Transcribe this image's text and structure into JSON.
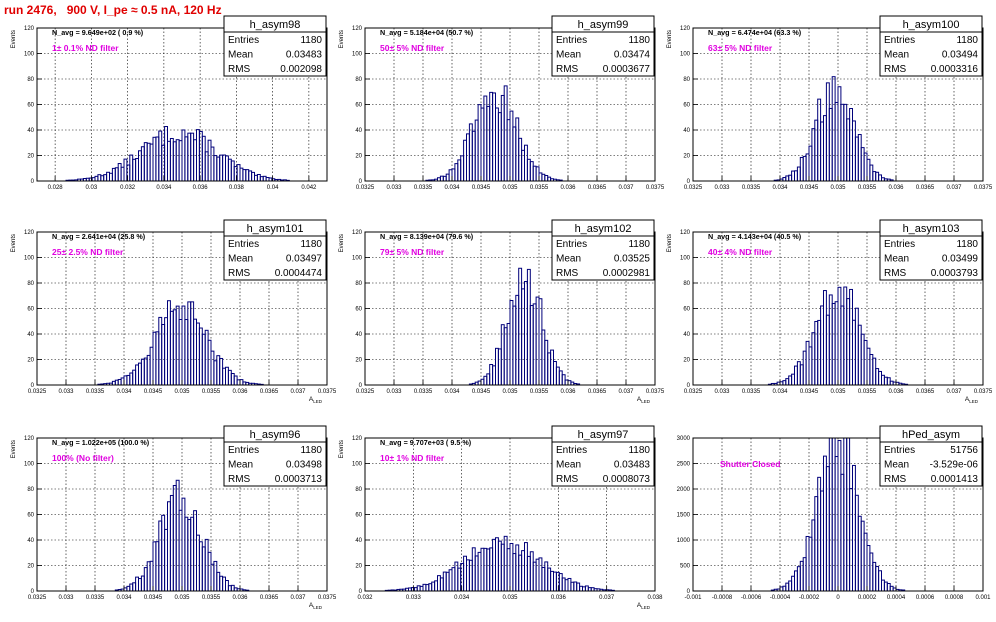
{
  "page_title": "run 2476,   900 V, I_pe ≈ 0.5 nA, 120 Hz",
  "chart_data": [
    {
      "type": "bar",
      "name": "h_asym98",
      "navg": "N_avg = 9.649e+02 ( 0.9 %)",
      "filter": "1± 0.1% ND filter",
      "stats": {
        "entries_label": "Entries",
        "entries": "1180",
        "mean_label": "Mean",
        "mean": "0.03483",
        "rms_label": "RMS",
        "rms": "0.002098"
      },
      "ylabel": "Events",
      "xlabel": "",
      "xlim": [
        0.027,
        0.043
      ],
      "ylim": [
        0,
        120
      ],
      "xticks": [
        0.028,
        0.03,
        0.032,
        0.034,
        0.036,
        0.038,
        0.04,
        0.042
      ],
      "xtick_labels": [
        "0.028",
        "0.03",
        "0.032",
        "0.034",
        "0.036",
        "0.038",
        "0.04",
        "0.042"
      ],
      "yticks": [
        0,
        20,
        40,
        60,
        80,
        100,
        120
      ],
      "ytick_labels": [
        "0",
        "20",
        "40",
        "60",
        "80",
        "100",
        "120"
      ],
      "mean": 0.03483,
      "sigma": 0.0021,
      "peak": 38,
      "bins": 100
    },
    {
      "type": "bar",
      "name": "h_asym99",
      "navg": "N_avg = 5.184e+04 (50.7 %)",
      "filter": "50± 5% ND filter",
      "stats": {
        "entries_label": "Entries",
        "entries": "1180",
        "mean_label": "Mean",
        "mean": "0.03474",
        "rms_label": "RMS",
        "rms": "0.0003677"
      },
      "ylabel": "Events",
      "xlabel": "",
      "xlim": [
        0.0325,
        0.0375
      ],
      "ylim": [
        0,
        120
      ],
      "xticks": [
        0.0325,
        0.033,
        0.0335,
        0.034,
        0.0345,
        0.035,
        0.0355,
        0.036,
        0.0365,
        0.037,
        0.0375
      ],
      "xtick_labels": [
        "0.0325",
        "0.033",
        "0.0335",
        "0.034",
        "0.0345",
        "0.035",
        "0.0355",
        "0.036",
        "0.0365",
        "0.037",
        "0.0375"
      ],
      "yticks": [
        0,
        20,
        40,
        60,
        80,
        100,
        120
      ],
      "ytick_labels": [
        "0",
        "20",
        "40",
        "60",
        "80",
        "100",
        "120"
      ],
      "mean": 0.03474,
      "sigma": 0.00037,
      "peak": 70,
      "bins": 100
    },
    {
      "type": "bar",
      "name": "h_asym100",
      "navg": "N_avg = 6.474e+04 (63.3 %)",
      "filter": "63± 5% ND filter",
      "stats": {
        "entries_label": "Entries",
        "entries": "1180",
        "mean_label": "Mean",
        "mean": "0.03494",
        "rms_label": "RMS",
        "rms": "0.0003316"
      },
      "ylabel": "Events",
      "xlabel": "",
      "xlim": [
        0.0325,
        0.0375
      ],
      "ylim": [
        0,
        120
      ],
      "xticks": [
        0.0325,
        0.033,
        0.0335,
        0.034,
        0.0345,
        0.035,
        0.0355,
        0.036,
        0.0365,
        0.037,
        0.0375
      ],
      "xtick_labels": [
        "0.0325",
        "0.033",
        "0.0335",
        "0.034",
        "0.0345",
        "0.035",
        "0.0355",
        "0.036",
        "0.0365",
        "0.037",
        "0.0375"
      ],
      "yticks": [
        0,
        20,
        40,
        60,
        80,
        100,
        120
      ],
      "ytick_labels": [
        "0",
        "20",
        "40",
        "60",
        "80",
        "100",
        "120"
      ],
      "mean": 0.03494,
      "sigma": 0.00033,
      "peak": 73,
      "bins": 100
    },
    {
      "type": "bar",
      "name": "h_asym101",
      "navg": "N_avg = 2.641e+04 (25.8 %)",
      "filter": "25± 2.5% ND filter",
      "stats": {
        "entries_label": "Entries",
        "entries": "1180",
        "mean_label": "Mean",
        "mean": "0.03497",
        "rms_label": "RMS",
        "rms": "0.0004474"
      },
      "ylabel": "Events",
      "xlabel": "A_{LED}",
      "xlim": [
        0.0325,
        0.0375
      ],
      "ylim": [
        0,
        120
      ],
      "xticks": [
        0.0325,
        0.033,
        0.0335,
        0.034,
        0.0345,
        0.035,
        0.0355,
        0.036,
        0.0365,
        0.037,
        0.0375
      ],
      "xtick_labels": [
        "0.0325",
        "0.033",
        "0.0335",
        "0.034",
        "0.0345",
        "0.035",
        "0.0355",
        "0.036",
        "0.0365",
        "0.037",
        "0.0375"
      ],
      "yticks": [
        0,
        20,
        40,
        60,
        80,
        100,
        120
      ],
      "ytick_labels": [
        "0",
        "20",
        "40",
        "60",
        "80",
        "100",
        "120"
      ],
      "mean": 0.03497,
      "sigma": 0.00045,
      "peak": 60,
      "bins": 100
    },
    {
      "type": "bar",
      "name": "h_asym102",
      "navg": "N_avg = 8.139e+04 (79.6 %)",
      "filter": "79± 5% ND filter",
      "stats": {
        "entries_label": "Entries",
        "entries": "1180",
        "mean_label": "Mean",
        "mean": "0.03525",
        "rms_label": "RMS",
        "rms": "0.0002981"
      },
      "ylabel": "Events",
      "xlabel": "A_{LED}",
      "xlim": [
        0.0325,
        0.0375
      ],
      "ylim": [
        0,
        120
      ],
      "xticks": [
        0.0325,
        0.033,
        0.0335,
        0.034,
        0.0345,
        0.035,
        0.0355,
        0.036,
        0.0365,
        0.037,
        0.0375
      ],
      "xtick_labels": [
        "0.0325",
        "0.033",
        "0.0335",
        "0.034",
        "0.0345",
        "0.035",
        "0.0355",
        "0.036",
        "0.0365",
        "0.037",
        "0.0375"
      ],
      "yticks": [
        0,
        20,
        40,
        60,
        80,
        100,
        120
      ],
      "ytick_labels": [
        "0",
        "20",
        "40",
        "60",
        "80",
        "100",
        "120"
      ],
      "mean": 0.03525,
      "sigma": 0.0003,
      "peak": 85,
      "bins": 100
    },
    {
      "type": "bar",
      "name": "h_asym103",
      "navg": "N_avg = 4.143e+04 (40.5 %)",
      "filter": "40± 4% ND filter",
      "stats": {
        "entries_label": "Entries",
        "entries": "1180",
        "mean_label": "Mean",
        "mean": "0.03499",
        "rms_label": "RMS",
        "rms": "0.0003793"
      },
      "ylabel": "Events",
      "xlabel": "A_{LED}",
      "xlim": [
        0.0325,
        0.0375
      ],
      "ylim": [
        0,
        120
      ],
      "xticks": [
        0.0325,
        0.033,
        0.0335,
        0.034,
        0.0345,
        0.035,
        0.0355,
        0.036,
        0.0365,
        0.037,
        0.0375
      ],
      "xtick_labels": [
        "0.0325",
        "0.033",
        "0.0335",
        "0.034",
        "0.0345",
        "0.035",
        "0.0355",
        "0.036",
        "0.0365",
        "0.037",
        "0.0375"
      ],
      "yticks": [
        0,
        20,
        40,
        60,
        80,
        100,
        120
      ],
      "ytick_labels": [
        "0",
        "20",
        "40",
        "60",
        "80",
        "100",
        "120"
      ],
      "mean": 0.03499,
      "sigma": 0.00038,
      "peak": 75,
      "bins": 100
    },
    {
      "type": "bar",
      "name": "h_asym96",
      "navg": "N_avg = 1.022e+05 (100.0 %)",
      "filter": "100% (No filter)",
      "stats": {
        "entries_label": "Entries",
        "entries": "1180",
        "mean_label": "Mean",
        "mean": "0.03498",
        "rms_label": "RMS",
        "rms": "0.0003713"
      },
      "ylabel": "Events",
      "xlabel": "A_{LED}",
      "xlim": [
        0.0325,
        0.0375
      ],
      "ylim": [
        0,
        120
      ],
      "xticks": [
        0.0325,
        0.033,
        0.0335,
        0.034,
        0.0345,
        0.035,
        0.0355,
        0.036,
        0.0365,
        0.037,
        0.0375
      ],
      "xtick_labels": [
        "0.0325",
        "0.033",
        "0.0335",
        "0.034",
        "0.0345",
        "0.035",
        "0.0355",
        "0.036",
        "0.0365",
        "0.037",
        "0.0375"
      ],
      "yticks": [
        0,
        20,
        40,
        60,
        80,
        100,
        120
      ],
      "ytick_labels": [
        "0",
        "20",
        "40",
        "60",
        "80",
        "100",
        "120"
      ],
      "mean": 0.03498,
      "sigma": 0.00037,
      "peak": 72,
      "bins": 100
    },
    {
      "type": "bar",
      "name": "h_asym97",
      "navg": "N_avg = 9.707e+03 ( 9.5 %)",
      "filter": "10± 1% ND filter",
      "stats": {
        "entries_label": "Entries",
        "entries": "1180",
        "mean_label": "Mean",
        "mean": "0.03483",
        "rms_label": "RMS",
        "rms": "0.0008073"
      },
      "ylabel": "Events",
      "xlabel": "A_{LED}",
      "xlim": [
        0.032,
        0.038
      ],
      "ylim": [
        0,
        120
      ],
      "xticks": [
        0.032,
        0.033,
        0.034,
        0.035,
        0.036,
        0.037,
        0.038
      ],
      "xtick_labels": [
        "0.032",
        "0.033",
        "0.034",
        "0.035",
        "0.036",
        "0.037",
        "0.038"
      ],
      "yticks": [
        0,
        20,
        40,
        60,
        80,
        100,
        120
      ],
      "ytick_labels": [
        "0",
        "20",
        "40",
        "60",
        "80",
        "100",
        "120"
      ],
      "mean": 0.03483,
      "sigma": 0.0008,
      "peak": 38,
      "bins": 100
    },
    {
      "type": "bar",
      "name": "hPed_asym",
      "navg": "",
      "filter": "Shutter Closed",
      "stats": {
        "entries_label": "Entries",
        "entries": "51756",
        "mean_label": "Mean",
        "mean": "-3.529e-06",
        "rms_label": "RMS",
        "rms": "0.0001413"
      },
      "ylabel": "",
      "xlabel": "",
      "xlim": [
        -0.001,
        0.001
      ],
      "ylim": [
        0,
        3000
      ],
      "xticks": [
        -0.001,
        -0.0008,
        -0.0006,
        -0.0004,
        -0.0002,
        0,
        0.0002,
        0.0004,
        0.0006,
        0.0008,
        0.001
      ],
      "xtick_labels": [
        "-0.001",
        "-0.0008",
        "-0.0006",
        "-0.0004",
        "-0.0002",
        "0",
        "0.0002",
        "0.0004",
        "0.0006",
        "0.0008",
        "0.001"
      ],
      "yticks": [
        0,
        500,
        1000,
        1500,
        2000,
        2500,
        3000
      ],
      "ytick_labels": [
        "0",
        "500",
        "1000",
        "1500",
        "2000",
        "2500",
        "3000"
      ],
      "mean": -3.5e-06,
      "sigma": 0.000141,
      "peak": 2950,
      "bins": 100
    }
  ],
  "colors": {
    "histogram": "#00007a",
    "title": "#e00000",
    "annotation": "#e000e0",
    "grid": "#000000"
  }
}
